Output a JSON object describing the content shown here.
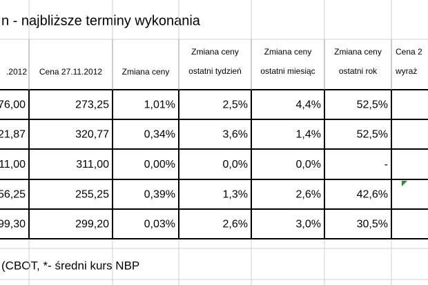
{
  "title": "n - najbliższe terminy wykonania",
  "table": {
    "header": [
      [
        ".2012"
      ],
      [
        "Cena 27.11.2012"
      ],
      [
        "Zmiana ceny"
      ],
      [
        "Zmiana ceny",
        "ostatni tydzień"
      ],
      [
        "Zmiana ceny",
        "ostatni miesiąc"
      ],
      [
        "Zmiana ceny",
        "ostatni rok"
      ],
      [
        "Cena 2",
        "wyraż"
      ]
    ],
    "rows": [
      [
        "76,00",
        "273,25",
        "1,01%",
        "2,5%",
        "4,4%",
        "52,5%"
      ],
      [
        "21,87",
        "320,77",
        "0,34%",
        "3,6%",
        "1,4%",
        "52,5%"
      ],
      [
        "11,00",
        "311,00",
        "0,00%",
        "0,0%",
        "0,0%",
        "-"
      ],
      [
        "56,25",
        "255,25",
        "0,39%",
        "1,3%",
        "2,6%",
        "42,6%"
      ],
      [
        "99,30",
        "299,20",
        "0,03%",
        "2,6%",
        "3,0%",
        "30,5%"
      ]
    ]
  },
  "footer": "(CBOT, *- średni kurs NBP"
}
